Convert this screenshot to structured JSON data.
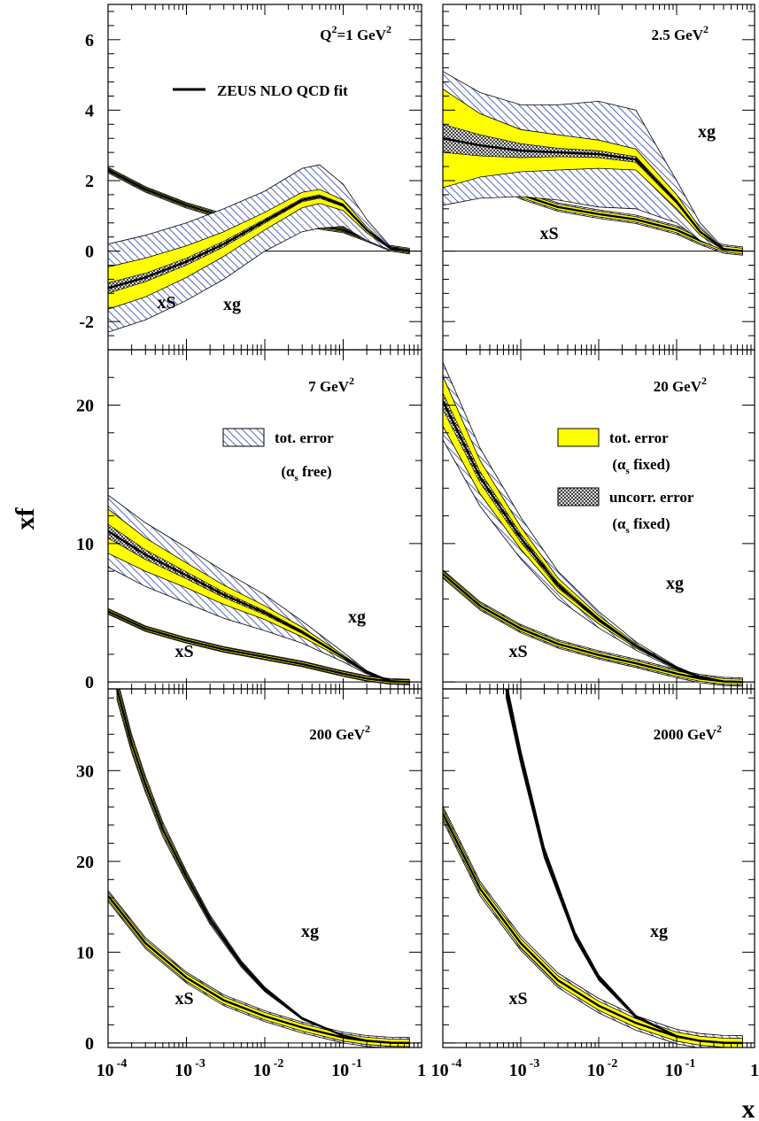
{
  "figure": {
    "y_axis_title": "xf",
    "x_axis_title": "x",
    "x_tick_labels": [
      {
        "base": "10",
        "exp": "-4"
      },
      {
        "base": "10",
        "exp": "-3"
      },
      {
        "base": "10",
        "exp": "-2"
      },
      {
        "base": "10",
        "exp": "-1"
      },
      {
        "base": "1",
        "exp": ""
      }
    ]
  },
  "colors": {
    "error_band_alpha_fixed": "#ffff00",
    "error_band_alpha_free": "#2a3ea8",
    "curve": "#000000"
  },
  "legend": {
    "fit_label": "ZEUS NLO QCD fit",
    "free": {
      "label": "tot. error",
      "sub_prefix": "(α",
      "sub_index": "s",
      "sub_suffix": " free)"
    },
    "fixed": {
      "label": "tot. error",
      "sub_prefix": "(α",
      "sub_index": "s",
      "sub_suffix": " fixed)"
    },
    "uncorr": {
      "label": "uncorr. error",
      "sub_prefix": "(α",
      "sub_index": "s",
      "sub_suffix": " fixed)"
    }
  },
  "chart_data": [
    {
      "type": "line",
      "panel": "Q2 = 1 GeV2",
      "q2_label": {
        "pre": "Q",
        "sup1": "2",
        "mid": "=1 GeV",
        "sup2": "2"
      },
      "x_scale": "log",
      "xlim": [
        0.0001,
        1
      ],
      "ylim": [
        -2.8,
        7.0
      ],
      "yticks": [
        -2,
        0,
        2,
        4,
        6
      ],
      "ytick_labels": [
        "-2",
        "0",
        "2",
        "4",
        "6"
      ],
      "xS_label": "xS",
      "xg_label": "xg",
      "series": [
        {
          "name": "xS",
          "x": [
            0.0001,
            0.0003,
            0.001,
            0.003,
            0.01,
            0.03,
            0.1,
            0.2,
            0.4,
            0.7
          ],
          "y": [
            2.3,
            1.75,
            1.3,
            0.98,
            0.85,
            0.78,
            0.6,
            0.35,
            0.08,
            0.0
          ],
          "band_free": 0.08,
          "band_fixed": 0.05
        },
        {
          "name": "xg",
          "x": [
            0.0001,
            0.0003,
            0.001,
            0.003,
            0.01,
            0.03,
            0.05,
            0.1,
            0.2,
            0.4,
            0.7
          ],
          "y": [
            -1.05,
            -0.75,
            -0.3,
            0.2,
            0.85,
            1.45,
            1.55,
            1.3,
            0.6,
            0.08,
            0.0
          ],
          "band_free": [
            1.25,
            1.2,
            1.1,
            1.0,
            0.85,
            0.9,
            0.9,
            0.6,
            0.3,
            0.05,
            0.0
          ],
          "band_fixed": [
            0.6,
            0.55,
            0.45,
            0.35,
            0.25,
            0.22,
            0.2,
            0.15,
            0.08,
            0.02,
            0.0
          ],
          "band_uncorr": [
            0.15,
            0.12,
            0.1,
            0.08,
            0.06,
            0.05,
            0.05,
            0.04,
            0.02,
            0.01,
            0.0
          ]
        }
      ]
    },
    {
      "type": "line",
      "panel": "Q2 = 2.5 GeV2",
      "q2_label": {
        "pre": "",
        "sup1": "",
        "mid": "2.5 GeV",
        "sup2": "2"
      },
      "x_scale": "log",
      "xlim": [
        0.0001,
        1
      ],
      "ylim": [
        -2.8,
        7.0
      ],
      "yticks": [
        -2,
        0,
        2,
        4,
        6
      ],
      "ytick_labels": [
        "",
        "",
        "",
        "",
        ""
      ],
      "xS_label": "xS",
      "xg_label": "xg",
      "series": [
        {
          "name": "xS",
          "x": [
            0.0001,
            0.0003,
            0.001,
            0.003,
            0.01,
            0.03,
            0.1,
            0.2,
            0.4,
            0.7
          ],
          "y": [
            3.0,
            2.2,
            1.6,
            1.25,
            1.05,
            0.9,
            0.6,
            0.3,
            0.06,
            0.0
          ],
          "band_free": 0.12,
          "band_fixed": 0.08
        },
        {
          "name": "xg",
          "x": [
            0.0001,
            0.0003,
            0.001,
            0.003,
            0.01,
            0.03,
            0.1,
            0.2,
            0.4,
            0.7
          ],
          "y": [
            3.2,
            3.0,
            2.85,
            2.8,
            2.75,
            2.6,
            1.4,
            0.55,
            0.05,
            0.0
          ],
          "band_free": [
            1.9,
            1.5,
            1.3,
            1.35,
            1.5,
            1.4,
            0.6,
            0.25,
            0.03,
            0.0
          ],
          "band_fixed": [
            1.4,
            0.9,
            0.6,
            0.5,
            0.4,
            0.3,
            0.2,
            0.1,
            0.02,
            0.0
          ],
          "band_uncorr": [
            0.4,
            0.3,
            0.2,
            0.12,
            0.1,
            0.08,
            0.05,
            0.03,
            0.01,
            0.0
          ]
        }
      ]
    },
    {
      "type": "line",
      "panel": "Q2 = 7 GeV2",
      "q2_label": {
        "pre": "",
        "sup1": "",
        "mid": "7 GeV",
        "sup2": "2"
      },
      "x_scale": "log",
      "xlim": [
        0.0001,
        1
      ],
      "ylim": [
        -0.5,
        24.0
      ],
      "yticks": [
        0,
        10,
        20
      ],
      "ytick_labels": [
        "0",
        "10",
        "20"
      ],
      "xS_label": "xS",
      "xg_label": "xg",
      "series": [
        {
          "name": "xS",
          "x": [
            0.0001,
            0.0003,
            0.001,
            0.003,
            0.01,
            0.03,
            0.1,
            0.2,
            0.4,
            0.7
          ],
          "y": [
            5.1,
            3.85,
            3.0,
            2.35,
            1.8,
            1.3,
            0.6,
            0.25,
            0.04,
            0.0
          ],
          "band_free": 0.2,
          "band_fixed": 0.15
        },
        {
          "name": "xg",
          "x": [
            0.0001,
            0.0003,
            0.001,
            0.003,
            0.01,
            0.03,
            0.1,
            0.2,
            0.4,
            0.7
          ],
          "y": [
            10.9,
            9.2,
            7.7,
            6.3,
            5.0,
            3.6,
            1.8,
            0.7,
            0.06,
            0.0
          ],
          "band_free": [
            2.6,
            2.3,
            2.0,
            1.7,
            1.3,
            0.8,
            0.35,
            0.12,
            0.02,
            0.0
          ],
          "band_fixed": [
            1.6,
            1.2,
            0.9,
            0.7,
            0.5,
            0.35,
            0.15,
            0.06,
            0.01,
            0.0
          ],
          "band_uncorr": [
            0.5,
            0.35,
            0.25,
            0.2,
            0.15,
            0.1,
            0.05,
            0.02,
            0.01,
            0.0
          ]
        }
      ]
    },
    {
      "type": "line",
      "panel": "Q2 = 20 GeV2",
      "q2_label": {
        "pre": "",
        "sup1": "",
        "mid": "20 GeV",
        "sup2": "2"
      },
      "x_scale": "log",
      "xlim": [
        0.0001,
        1
      ],
      "ylim": [
        -0.5,
        24.0
      ],
      "yticks": [
        0,
        10,
        20
      ],
      "ytick_labels": [
        "",
        "",
        ""
      ],
      "xS_label": "xS",
      "xg_label": "xg",
      "series": [
        {
          "name": "xS",
          "x": [
            0.0001,
            0.0003,
            0.001,
            0.003,
            0.01,
            0.03,
            0.1,
            0.2,
            0.4,
            0.7
          ],
          "y": [
            7.8,
            5.5,
            3.85,
            2.75,
            1.95,
            1.35,
            0.6,
            0.25,
            0.04,
            0.0
          ],
          "band_free": 0.3,
          "band_fixed": 0.2
        },
        {
          "name": "xg",
          "x": [
            0.0001,
            0.0003,
            0.001,
            0.003,
            0.01,
            0.03,
            0.1,
            0.2,
            0.4,
            0.7
          ],
          "y": [
            20.3,
            14.8,
            10.4,
            7.0,
            4.5,
            2.6,
            1.0,
            0.35,
            0.04,
            0.0
          ],
          "band_free": [
            2.8,
            2.1,
            1.5,
            1.0,
            0.6,
            0.3,
            0.12,
            0.05,
            0.01,
            0.0
          ],
          "band_fixed": [
            1.8,
            1.2,
            0.8,
            0.5,
            0.3,
            0.15,
            0.06,
            0.03,
            0.01,
            0.0
          ],
          "band_uncorr": [
            0.6,
            0.4,
            0.3,
            0.2,
            0.12,
            0.06,
            0.03,
            0.01,
            0.0,
            0.0
          ]
        }
      ]
    },
    {
      "type": "line",
      "panel": "Q2 = 200 GeV2",
      "q2_label": {
        "pre": "",
        "sup1": "",
        "mid": "200 GeV",
        "sup2": "2"
      },
      "x_scale": "log",
      "xlim": [
        0.0001,
        1
      ],
      "ylim": [
        -0.5,
        39.0
      ],
      "yticks": [
        0,
        10,
        20,
        30
      ],
      "ytick_labels": [
        "0",
        "10",
        "20",
        "30"
      ],
      "xS_label": "xS",
      "xg_label": "xg",
      "series": [
        {
          "name": "xS",
          "x": [
            0.0001,
            0.0003,
            0.001,
            0.003,
            0.01,
            0.03,
            0.1,
            0.2,
            0.4,
            0.7
          ],
          "y": [
            16.2,
            11.0,
            7.2,
            4.7,
            2.95,
            1.7,
            0.6,
            0.22,
            0.03,
            0.0
          ],
          "band_free": 0.6,
          "band_fixed": 0.4
        },
        {
          "name": "xg",
          "x": [
            0.00013,
            0.0002,
            0.0003,
            0.0005,
            0.001,
            0.002,
            0.005,
            0.01,
            0.03,
            0.1,
            0.2,
            0.4,
            0.7
          ],
          "y": [
            39.0,
            33.0,
            28.5,
            23.5,
            18.3,
            13.6,
            8.7,
            5.9,
            2.7,
            0.8,
            0.25,
            0.03,
            0.0
          ],
          "band_free": [
            1.2,
            1.0,
            0.9,
            0.8,
            0.6,
            0.5,
            0.35,
            0.25,
            0.12,
            0.05,
            0.02,
            0.0,
            0.0
          ],
          "band_fixed": [
            0.8,
            0.7,
            0.6,
            0.5,
            0.4,
            0.3,
            0.2,
            0.15,
            0.08,
            0.03,
            0.01,
            0.0,
            0.0
          ],
          "band_uncorr": [
            0.3,
            0.25,
            0.2,
            0.15,
            0.12,
            0.1,
            0.08,
            0.05,
            0.03,
            0.01,
            0.0,
            0.0,
            0.0
          ]
        }
      ]
    },
    {
      "type": "line",
      "panel": "Q2 = 2000 GeV2",
      "q2_label": {
        "pre": "",
        "sup1": "",
        "mid": "2000 GeV",
        "sup2": "2"
      },
      "x_scale": "log",
      "xlim": [
        0.0001,
        1
      ],
      "ylim": [
        -0.5,
        39.0
      ],
      "yticks": [
        0,
        10,
        20,
        30
      ],
      "ytick_labels": [
        "",
        "",
        "",
        ""
      ],
      "xS_label": "xS",
      "xg_label": "xg",
      "series": [
        {
          "name": "xS",
          "x": [
            0.0001,
            0.0003,
            0.001,
            0.003,
            0.01,
            0.03,
            0.1,
            0.2,
            0.4,
            0.7
          ],
          "y": [
            25.3,
            17.0,
            11.0,
            6.9,
            4.1,
            2.2,
            0.7,
            0.24,
            0.03,
            0.0
          ],
          "band_free": 0.8,
          "band_fixed": 0.5
        },
        {
          "name": "xg",
          "x": [
            0.00065,
            0.001,
            0.002,
            0.005,
            0.01,
            0.03,
            0.1,
            0.2,
            0.4,
            0.7
          ],
          "y": [
            39.0,
            31.5,
            21.0,
            11.8,
            7.2,
            2.9,
            0.75,
            0.22,
            0.02,
            0.0
          ],
          "band_free": [
            1.0,
            0.8,
            0.6,
            0.4,
            0.3,
            0.15,
            0.05,
            0.02,
            0.0,
            0.0
          ],
          "band_fixed": [
            0.7,
            0.6,
            0.45,
            0.3,
            0.2,
            0.1,
            0.03,
            0.01,
            0.0,
            0.0
          ],
          "band_uncorr": [
            0.25,
            0.2,
            0.15,
            0.1,
            0.08,
            0.04,
            0.01,
            0.0,
            0.0,
            0.0
          ]
        }
      ]
    }
  ]
}
